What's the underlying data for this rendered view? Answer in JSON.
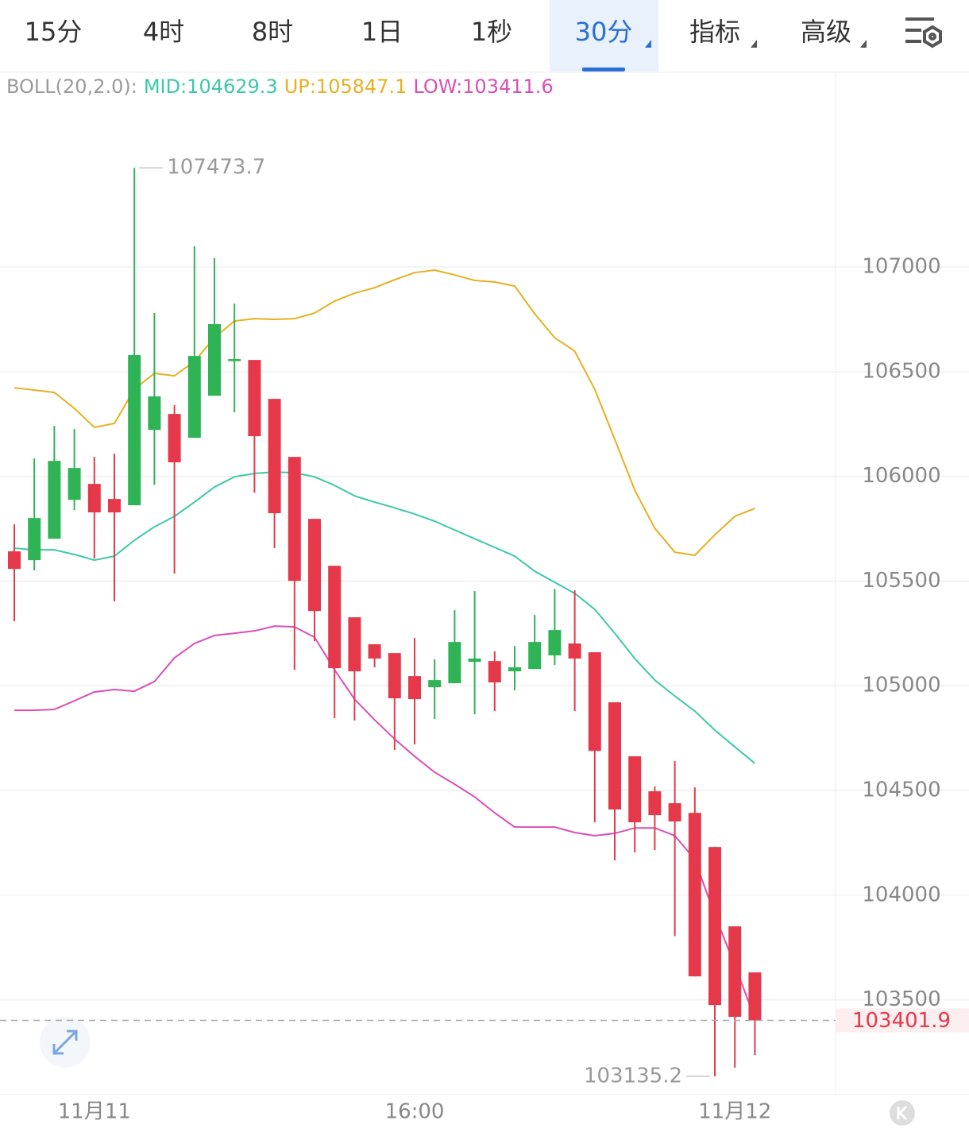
{
  "tabs": [
    "15分",
    "4时",
    "8时",
    "1日",
    "1秒",
    "30分",
    "指标",
    "高级"
  ],
  "active_tab": 5,
  "chart_data": {
    "type": "candlestick",
    "indicator_labels": [
      "BOLL(20,2.0):",
      "MID:104629.3",
      "UP:105847.1",
      "LOW:103411.6"
    ],
    "indicator_colors": [
      "#9a9a9a",
      "#3cc9a8",
      "#e6b020",
      "#d94fb5"
    ],
    "categories": [
      null,
      null,
      null,
      null,
      "11月11",
      null,
      null,
      null,
      null,
      null,
      null,
      null,
      null,
      null,
      null,
      null,
      null,
      null,
      null,
      null,
      "16:00",
      null,
      null,
      null,
      null,
      null,
      null,
      null,
      null,
      null,
      null,
      null,
      null,
      null,
      null,
      null,
      "11月12",
      null
    ],
    "open": [
      105642,
      105600,
      105702,
      105888,
      105964,
      105892,
      105862,
      106222,
      106298,
      106184,
      106385,
      106552,
      106556,
      106370,
      106093,
      105797,
      105573,
      105327,
      105198,
      105156,
      105046,
      104993,
      105012,
      105114,
      105118,
      105069,
      105080,
      105145,
      105202,
      105160,
      104921,
      104663,
      104496,
      104439,
      104393,
      104230,
      103851,
      103631
    ],
    "high": [
      105771,
      106086,
      106241,
      106226,
      106093,
      106108,
      107473.7,
      106780,
      106340,
      107099,
      107042,
      106825,
      106556,
      106370,
      106093,
      105797,
      105573,
      105327,
      105198,
      105156,
      105228,
      105126,
      105361,
      105452,
      105164,
      105190,
      105338,
      105463,
      105456,
      105160,
      104921,
      104663,
      104519,
      104640,
      104515,
      104230,
      103851,
      103631
    ],
    "low": [
      105308,
      105551,
      105702,
      105839,
      105608,
      105403,
      105862,
      105960,
      105536,
      106184,
      106385,
      106306,
      105922,
      105657,
      105076,
      105213,
      104845,
      104834,
      105088,
      104693,
      104720,
      104841,
      105012,
      104864,
      104879,
      104978,
      105080,
      105099,
      104879,
      104348,
      104166,
      104204,
      104215,
      103805,
      103612,
      103135.2,
      103176,
      103236
    ],
    "close": [
      105558,
      105801,
      106074,
      106040,
      105828,
      105828,
      106579,
      106382,
      106067,
      106575,
      106727,
      106560,
      106192,
      105824,
      105501,
      105357,
      105084,
      105069,
      105130,
      104940,
      104936,
      105027,
      105209,
      105130,
      105016,
      105088,
      105209,
      105266,
      105130,
      104689,
      104409,
      104348,
      104382,
      104352,
      103612,
      103475,
      103419,
      103401.9
    ],
    "up_color": "#2eb355",
    "down_color": "#e5394b",
    "series": [
      {
        "color": "#e6b020",
        "values": [
          106423,
          106412,
          106401,
          106325,
          106234,
          106253,
          106416,
          106492,
          106480,
          106549,
          106662,
          106742,
          106753,
          106750,
          106753,
          106780,
          106837,
          106875,
          106901,
          106939,
          106973,
          106985,
          106962,
          106936,
          106928,
          106909,
          106776,
          106662,
          106598,
          106416,
          106177,
          105934,
          105752,
          105638,
          105623,
          105721,
          105809,
          105847.1
        ]
      },
      {
        "color": "#3cc9a8",
        "values": [
          105657,
          105649,
          105649,
          105627,
          105600,
          105619,
          105695,
          105759,
          105809,
          105877,
          105949,
          105998,
          106014,
          106021,
          106017,
          105998,
          105957,
          105907,
          105877,
          105850,
          105820,
          105786,
          105744,
          105702,
          105661,
          105619,
          105547,
          105494,
          105441,
          105365,
          105251,
          105130,
          105027,
          104951,
          104879,
          104788,
          104708,
          104629.3
        ]
      },
      {
        "color": "#d94fb5",
        "values": [
          104883,
          104883,
          104887,
          104928,
          104970,
          104982,
          104974,
          105020,
          105133,
          105202,
          105240,
          105251,
          105262,
          105285,
          105281,
          105232,
          105076,
          104936,
          104837,
          104746,
          104663,
          104587,
          104530,
          104469,
          104393,
          104325,
          104325,
          104325,
          104299,
          104284,
          104295,
          104321,
          104321,
          104284,
          104170,
          103904,
          103665,
          103411.6
        ]
      }
    ],
    "ylim": [
      103047,
      107926
    ],
    "yticks": [
      103500,
      104000,
      104500,
      105000,
      105500,
      106000,
      106500,
      107000
    ],
    "grid": true
  }
}
